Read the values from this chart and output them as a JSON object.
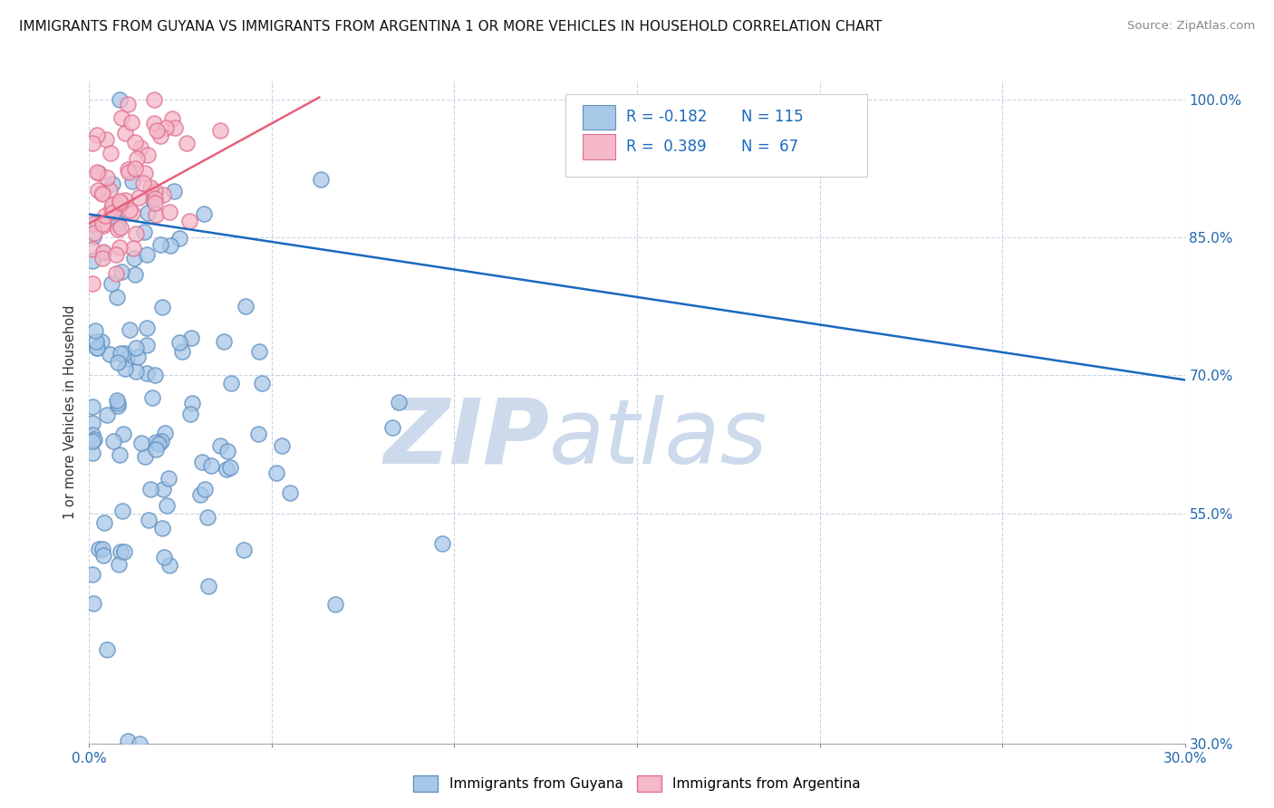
{
  "title": "IMMIGRANTS FROM GUYANA VS IMMIGRANTS FROM ARGENTINA 1 OR MORE VEHICLES IN HOUSEHOLD CORRELATION CHART",
  "source": "Source: ZipAtlas.com",
  "ylabel": "1 or more Vehicles in Household",
  "xlim": [
    0.0,
    0.3
  ],
  "ylim": [
    0.3,
    1.02
  ],
  "guyana_R": -0.182,
  "guyana_N": 115,
  "argentina_R": 0.389,
  "argentina_N": 67,
  "guyana_color": "#a8c8e8",
  "argentina_color": "#f4b8c8",
  "guyana_edge_color": "#6090c0",
  "argentina_edge_color": "#e07090",
  "guyana_line_color": "#1a6abf",
  "argentina_line_color": "#e8607a",
  "legend_r_color": "#1a6abf",
  "background_color": "#ffffff",
  "watermark_zip": "ZIP",
  "watermark_atlas": "atlas",
  "watermark_color": "#ccdaec",
  "y_ticks": [
    1.0,
    0.85,
    0.7,
    0.55,
    0.3
  ],
  "y_tick_labels": [
    "100.0%",
    "85.0%",
    "70.0%",
    "55.0%",
    "30.0%"
  ],
  "x_ticks": [
    0.0,
    0.05,
    0.1,
    0.15,
    0.2,
    0.25,
    0.3
  ],
  "guyana_line_x0": 0.0,
  "guyana_line_x1": 0.3,
  "guyana_line_y0": 0.875,
  "guyana_line_y1": 0.695,
  "argentina_line_x0": 0.0,
  "argentina_line_x1": 0.063,
  "argentina_line_y0": 0.865,
  "argentina_line_y1": 1.002
}
